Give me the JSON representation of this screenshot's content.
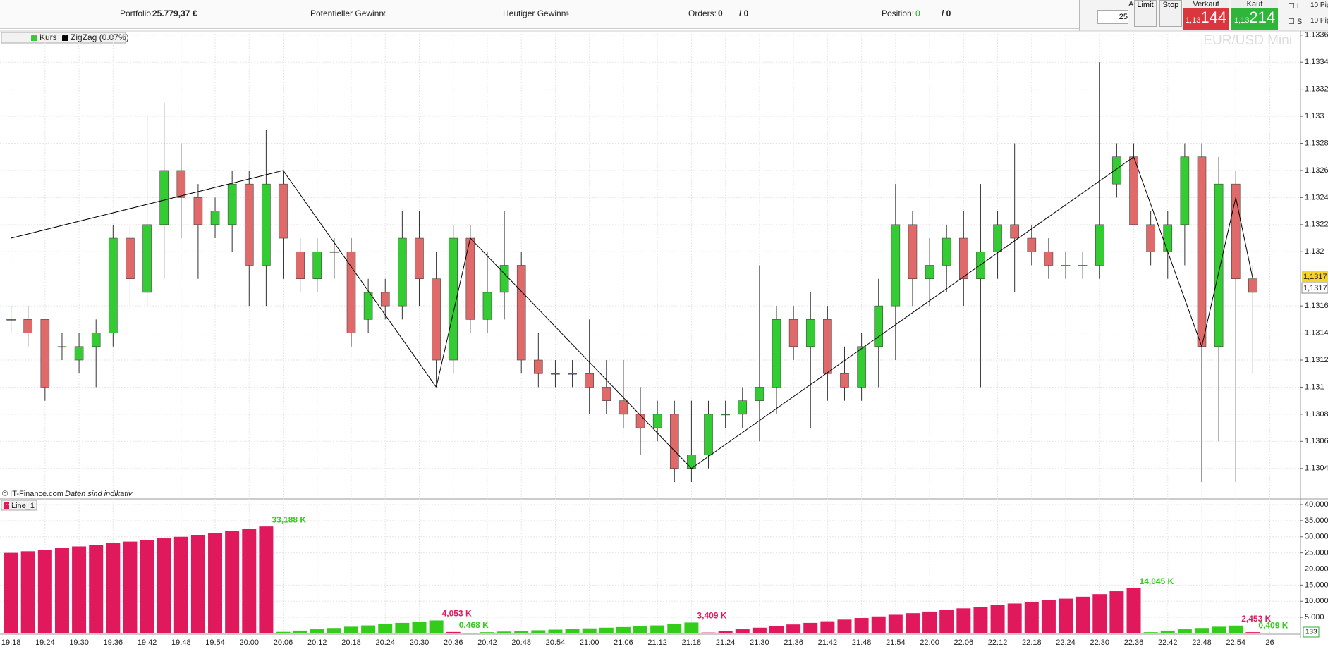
{
  "header": {
    "portfolio_label": "Portfolio:",
    "portfolio_value": "25.779,37 €",
    "potential_label": "Potentieller Gewinn:",
    "potential_value": "-",
    "today_label": "Heutiger Gewinn:",
    "today_value": "-",
    "orders_label": "Orders:",
    "orders_value": "0",
    "orders_total": "/ 0",
    "position_label": "Position:",
    "position_value": "0",
    "position_total": "/ 0",
    "qty_label": "Anz.",
    "qty_value": "25",
    "limit_label": "Limit",
    "stop_label": "Stop",
    "sell_label": "Verkauf",
    "sell_prefix": "1,13",
    "sell_pips": "144",
    "buy_label": "Kauf",
    "buy_prefix": "1,13",
    "buy_pips": "214",
    "l_label": "L",
    "s_label": "S",
    "l_pips": "10",
    "l_unit": "Pip",
    "s_pips": "10",
    "s_unit": "Pip"
  },
  "chart_data": [
    {
      "type": "candlestick",
      "title": "EUR/USD Mini",
      "name": "Kurs",
      "copyright": "© IT-Finance.com",
      "disclaimer": "Daten sind indikativ",
      "up_color": "#33cc33",
      "down_color": "#e06a6a",
      "open": [
        1.1315,
        1.1315,
        1.1315,
        1.1313,
        1.1312,
        1.1313,
        1.1314,
        1.1321,
        1.1317,
        1.1322,
        1.1326,
        1.1324,
        1.1322,
        1.1322,
        1.1325,
        1.1319,
        1.1325,
        1.132,
        1.1318,
        1.132,
        1.132,
        1.1315,
        1.1317,
        1.1316,
        1.1321,
        1.1318,
        1.1312,
        1.1321,
        1.1315,
        1.1317,
        1.1319,
        1.1312,
        1.1311,
        1.1311,
        1.1311,
        1.131,
        1.1309,
        1.1308,
        1.1307,
        1.1308,
        1.1304,
        1.1305,
        1.1308,
        1.1308,
        1.1309,
        1.131,
        1.1315,
        1.1313,
        1.1315,
        1.1311,
        1.131,
        1.1313,
        1.1316,
        1.1322,
        1.1318,
        1.1319,
        1.1321,
        1.1318,
        1.132,
        1.1322,
        1.1321,
        1.132,
        1.1319,
        1.1319,
        1.1319,
        1.1325,
        1.1327,
        1.1322,
        1.132,
        1.1322,
        1.1327,
        1.1313,
        1.1325,
        1.1318,
        null
      ],
      "high": [
        1.1316,
        1.1316,
        1.1315,
        1.1314,
        1.1314,
        1.1315,
        1.1322,
        1.1322,
        1.133,
        1.1331,
        1.1328,
        1.1325,
        1.1324,
        1.1326,
        1.1326,
        1.1329,
        1.1326,
        1.1321,
        1.1321,
        1.1321,
        1.1321,
        1.1318,
        1.1318,
        1.1323,
        1.1323,
        1.132,
        1.1322,
        1.1322,
        1.132,
        1.1323,
        1.132,
        1.1314,
        1.1312,
        1.1312,
        1.1315,
        1.1312,
        1.1312,
        1.131,
        1.1309,
        1.1309,
        1.1309,
        1.1309,
        1.1309,
        1.131,
        1.1319,
        1.1316,
        1.1316,
        1.1317,
        1.1316,
        1.1313,
        1.1314,
        1.1318,
        1.1325,
        1.1323,
        1.1321,
        1.1322,
        1.1323,
        1.1325,
        1.1323,
        1.1328,
        1.1322,
        1.1321,
        1.132,
        1.132,
        1.1334,
        1.1328,
        1.1328,
        1.1323,
        1.1323,
        1.1328,
        1.1328,
        1.1327,
        1.1326,
        1.1319,
        null
      ],
      "low": [
        1.1314,
        1.1313,
        1.1309,
        1.1312,
        1.1311,
        1.131,
        1.1313,
        1.1316,
        1.1316,
        1.1318,
        1.1321,
        1.1318,
        1.1321,
        1.132,
        1.1316,
        1.1316,
        1.1318,
        1.1317,
        1.1317,
        1.1318,
        1.1313,
        1.1314,
        1.1315,
        1.1315,
        1.1316,
        1.131,
        1.1311,
        1.1314,
        1.1314,
        1.1315,
        1.1311,
        1.131,
        1.131,
        1.131,
        1.1308,
        1.1308,
        1.1307,
        1.1305,
        1.1306,
        1.1303,
        1.1303,
        1.1304,
        1.1307,
        1.1307,
        1.1306,
        1.1308,
        1.1312,
        1.1307,
        1.1309,
        1.1309,
        1.1309,
        1.131,
        1.1312,
        1.1316,
        1.1316,
        1.1317,
        1.1316,
        1.131,
        1.1318,
        1.1317,
        1.1319,
        1.1318,
        1.1318,
        1.1318,
        1.1318,
        1.1324,
        1.1322,
        1.1319,
        1.1318,
        1.1319,
        1.1303,
        1.1306,
        1.1303,
        1.1311,
        null
      ],
      "close": [
        1.1315,
        1.1314,
        1.131,
        1.1313,
        1.1313,
        1.1314,
        1.1321,
        1.1318,
        1.1322,
        1.1326,
        1.1324,
        1.1322,
        1.1323,
        1.1325,
        1.1319,
        1.1325,
        1.1321,
        1.1318,
        1.132,
        1.132,
        1.1314,
        1.1317,
        1.1316,
        1.1321,
        1.1318,
        1.1312,
        1.1321,
        1.1315,
        1.1317,
        1.1319,
        1.1312,
        1.1311,
        1.1311,
        1.1311,
        1.131,
        1.1309,
        1.1308,
        1.1307,
        1.1308,
        1.1304,
        1.1305,
        1.1308,
        1.1308,
        1.1309,
        1.131,
        1.1315,
        1.1313,
        1.1315,
        1.1311,
        1.131,
        1.1313,
        1.1316,
        1.1322,
        1.1318,
        1.1319,
        1.1321,
        1.1318,
        1.132,
        1.1322,
        1.1321,
        1.132,
        1.1319,
        1.1319,
        1.1319,
        1.1322,
        1.1327,
        1.1322,
        1.132,
        1.1322,
        1.1327,
        1.1313,
        1.1325,
        1.1318,
        1.1317,
        null
      ],
      "zigzag": {
        "name": "ZigZag (0.07%)",
        "color": "#000000",
        "values": [
          1.1321,
          null,
          null,
          null,
          null,
          null,
          null,
          null,
          null,
          null,
          null,
          null,
          null,
          null,
          null,
          null,
          1.1326,
          null,
          null,
          null,
          null,
          null,
          null,
          null,
          null,
          1.131,
          null,
          1.1321,
          null,
          null,
          null,
          null,
          null,
          null,
          null,
          null,
          null,
          null,
          null,
          null,
          1.1304,
          null,
          null,
          null,
          null,
          null,
          null,
          null,
          null,
          null,
          null,
          null,
          null,
          null,
          null,
          null,
          null,
          null,
          null,
          null,
          null,
          null,
          null,
          null,
          null,
          null,
          1.1327,
          null,
          null,
          null,
          1.1313,
          null,
          1.1324,
          1.1318,
          null
        ]
      },
      "last_price_labels": [
        "1,1317",
        "1,1317"
      ],
      "ylim": [
        1.130175,
        1.13363
      ],
      "yticks": [
        {
          "value": 1.1336,
          "label": "1,1336"
        },
        {
          "value": 1.1334,
          "label": "1,1334"
        },
        {
          "value": 1.1332,
          "label": "1,1332"
        },
        {
          "value": 1.133,
          "label": "1,133"
        },
        {
          "value": 1.1328,
          "label": "1,1328"
        },
        {
          "value": 1.1326,
          "label": "1,1326"
        },
        {
          "value": 1.1324,
          "label": "1,1324"
        },
        {
          "value": 1.1322,
          "label": "1,1322"
        },
        {
          "value": 1.132,
          "label": "1,132"
        },
        {
          "value": 1.1316,
          "label": "1,1316"
        },
        {
          "value": 1.1314,
          "label": "1,1314"
        },
        {
          "value": 1.1312,
          "label": "1,1312"
        },
        {
          "value": 1.131,
          "label": "1,131"
        },
        {
          "value": 1.1308,
          "label": "1,1308"
        },
        {
          "value": 1.1306,
          "label": "1,1306"
        },
        {
          "value": 1.1304,
          "label": "1,1304"
        }
      ],
      "grid": true
    },
    {
      "type": "bar",
      "name": "Line_1",
      "corner_label": "133",
      "categories": [
        "19:18",
        null,
        "19:24",
        null,
        "19:30",
        null,
        "19:36",
        null,
        "19:42",
        null,
        "19:48",
        null,
        "19:54",
        null,
        "20:00",
        null,
        "20:06",
        null,
        "20:12",
        null,
        "20:18",
        null,
        "20:24",
        null,
        "20:30",
        null,
        "20:36",
        null,
        "20:42",
        null,
        "20:48",
        null,
        "20:54",
        null,
        "21:00",
        null,
        "21:06",
        null,
        "21:12",
        null,
        "21:18",
        null,
        "21:24",
        null,
        "21:30",
        null,
        "21:36",
        null,
        "21:42",
        null,
        "21:48",
        null,
        "21:54",
        null,
        "22:00",
        null,
        "22:06",
        null,
        "22:12",
        null,
        "22:18",
        null,
        "22:24",
        null,
        "22:30",
        null,
        "22:36",
        null,
        "22:42",
        null,
        "22:48",
        null,
        "22:54",
        null,
        "26"
      ],
      "series": [
        {
          "color": "#e0185c",
          "values": [
            25000,
            25500,
            26000,
            26500,
            27000,
            27500,
            28000,
            28500,
            29000,
            29500,
            30000,
            30600,
            31200,
            31800,
            32500,
            33188,
            null,
            null,
            null,
            null,
            null,
            null,
            null,
            null,
            null,
            null,
            468,
            null,
            null,
            null,
            null,
            null,
            null,
            null,
            null,
            null,
            null,
            null,
            null,
            null,
            null,
            300,
            800,
            1300,
            1800,
            2300,
            2800,
            3300,
            3800,
            4300,
            4800,
            5300,
            5800,
            6300,
            6800,
            7300,
            7800,
            8300,
            8800,
            9300,
            9800,
            10300,
            10800,
            11400,
            12200,
            13100,
            14045,
            null,
            null,
            null,
            null,
            null,
            null,
            409,
            null
          ],
          "value_labels": [
            null,
            null,
            null,
            null,
            null,
            null,
            null,
            null,
            null,
            null,
            null,
            null,
            null,
            null,
            null,
            "33,188 K",
            null,
            null,
            null,
            null,
            null,
            null,
            null,
            null,
            null,
            null,
            "0,468 K",
            null,
            null,
            null,
            null,
            null,
            null,
            null,
            null,
            null,
            null,
            null,
            null,
            null,
            null,
            null,
            null,
            null,
            null,
            null,
            null,
            null,
            null,
            null,
            null,
            null,
            null,
            null,
            null,
            null,
            null,
            null,
            null,
            null,
            null,
            null,
            null,
            null,
            null,
            null,
            "14,045 K",
            null,
            null,
            null,
            null,
            null,
            null,
            "0,409 K",
            null
          ]
        },
        {
          "color": "#33cc1a",
          "values": [
            null,
            null,
            null,
            null,
            null,
            null,
            null,
            null,
            null,
            null,
            null,
            null,
            null,
            null,
            null,
            null,
            500,
            900,
            1300,
            1700,
            2100,
            2500,
            2900,
            3300,
            3700,
            4053,
            null,
            200,
            400,
            600,
            800,
            1000,
            1200,
            1400,
            1600,
            1800,
            2000,
            2200,
            2500,
            2900,
            3409,
            null,
            null,
            null,
            null,
            null,
            null,
            null,
            null,
            null,
            null,
            null,
            null,
            null,
            null,
            null,
            null,
            null,
            null,
            null,
            null,
            null,
            null,
            null,
            null,
            null,
            null,
            400,
            900,
            1300,
            1700,
            2100,
            2453,
            null,
            null
          ],
          "value_labels": [
            null,
            null,
            null,
            null,
            null,
            null,
            null,
            null,
            null,
            null,
            null,
            null,
            null,
            null,
            null,
            null,
            null,
            null,
            null,
            null,
            null,
            null,
            null,
            null,
            null,
            "4,053 K",
            null,
            null,
            null,
            null,
            null,
            null,
            null,
            null,
            null,
            null,
            null,
            null,
            null,
            null,
            "3,409 K",
            null,
            null,
            null,
            null,
            null,
            null,
            null,
            null,
            null,
            null,
            null,
            null,
            null,
            null,
            null,
            null,
            null,
            null,
            null,
            null,
            null,
            null,
            null,
            null,
            null,
            null,
            null,
            null,
            null,
            null,
            null,
            "2,453 K",
            null,
            null
          ]
        }
      ],
      "ylim": [
        0,
        40000
      ],
      "yticks": [
        {
          "value": 40000,
          "label": "40.000"
        },
        {
          "value": 35000,
          "label": "35.000"
        },
        {
          "value": 30000,
          "label": "30.000"
        },
        {
          "value": 25000,
          "label": "25.000"
        },
        {
          "value": 20000,
          "label": "20.000"
        },
        {
          "value": 15000,
          "label": "15.000"
        },
        {
          "value": 10000,
          "label": "10.000"
        },
        {
          "value": 5000,
          "label": "5.000"
        }
      ],
      "grid": true
    }
  ]
}
